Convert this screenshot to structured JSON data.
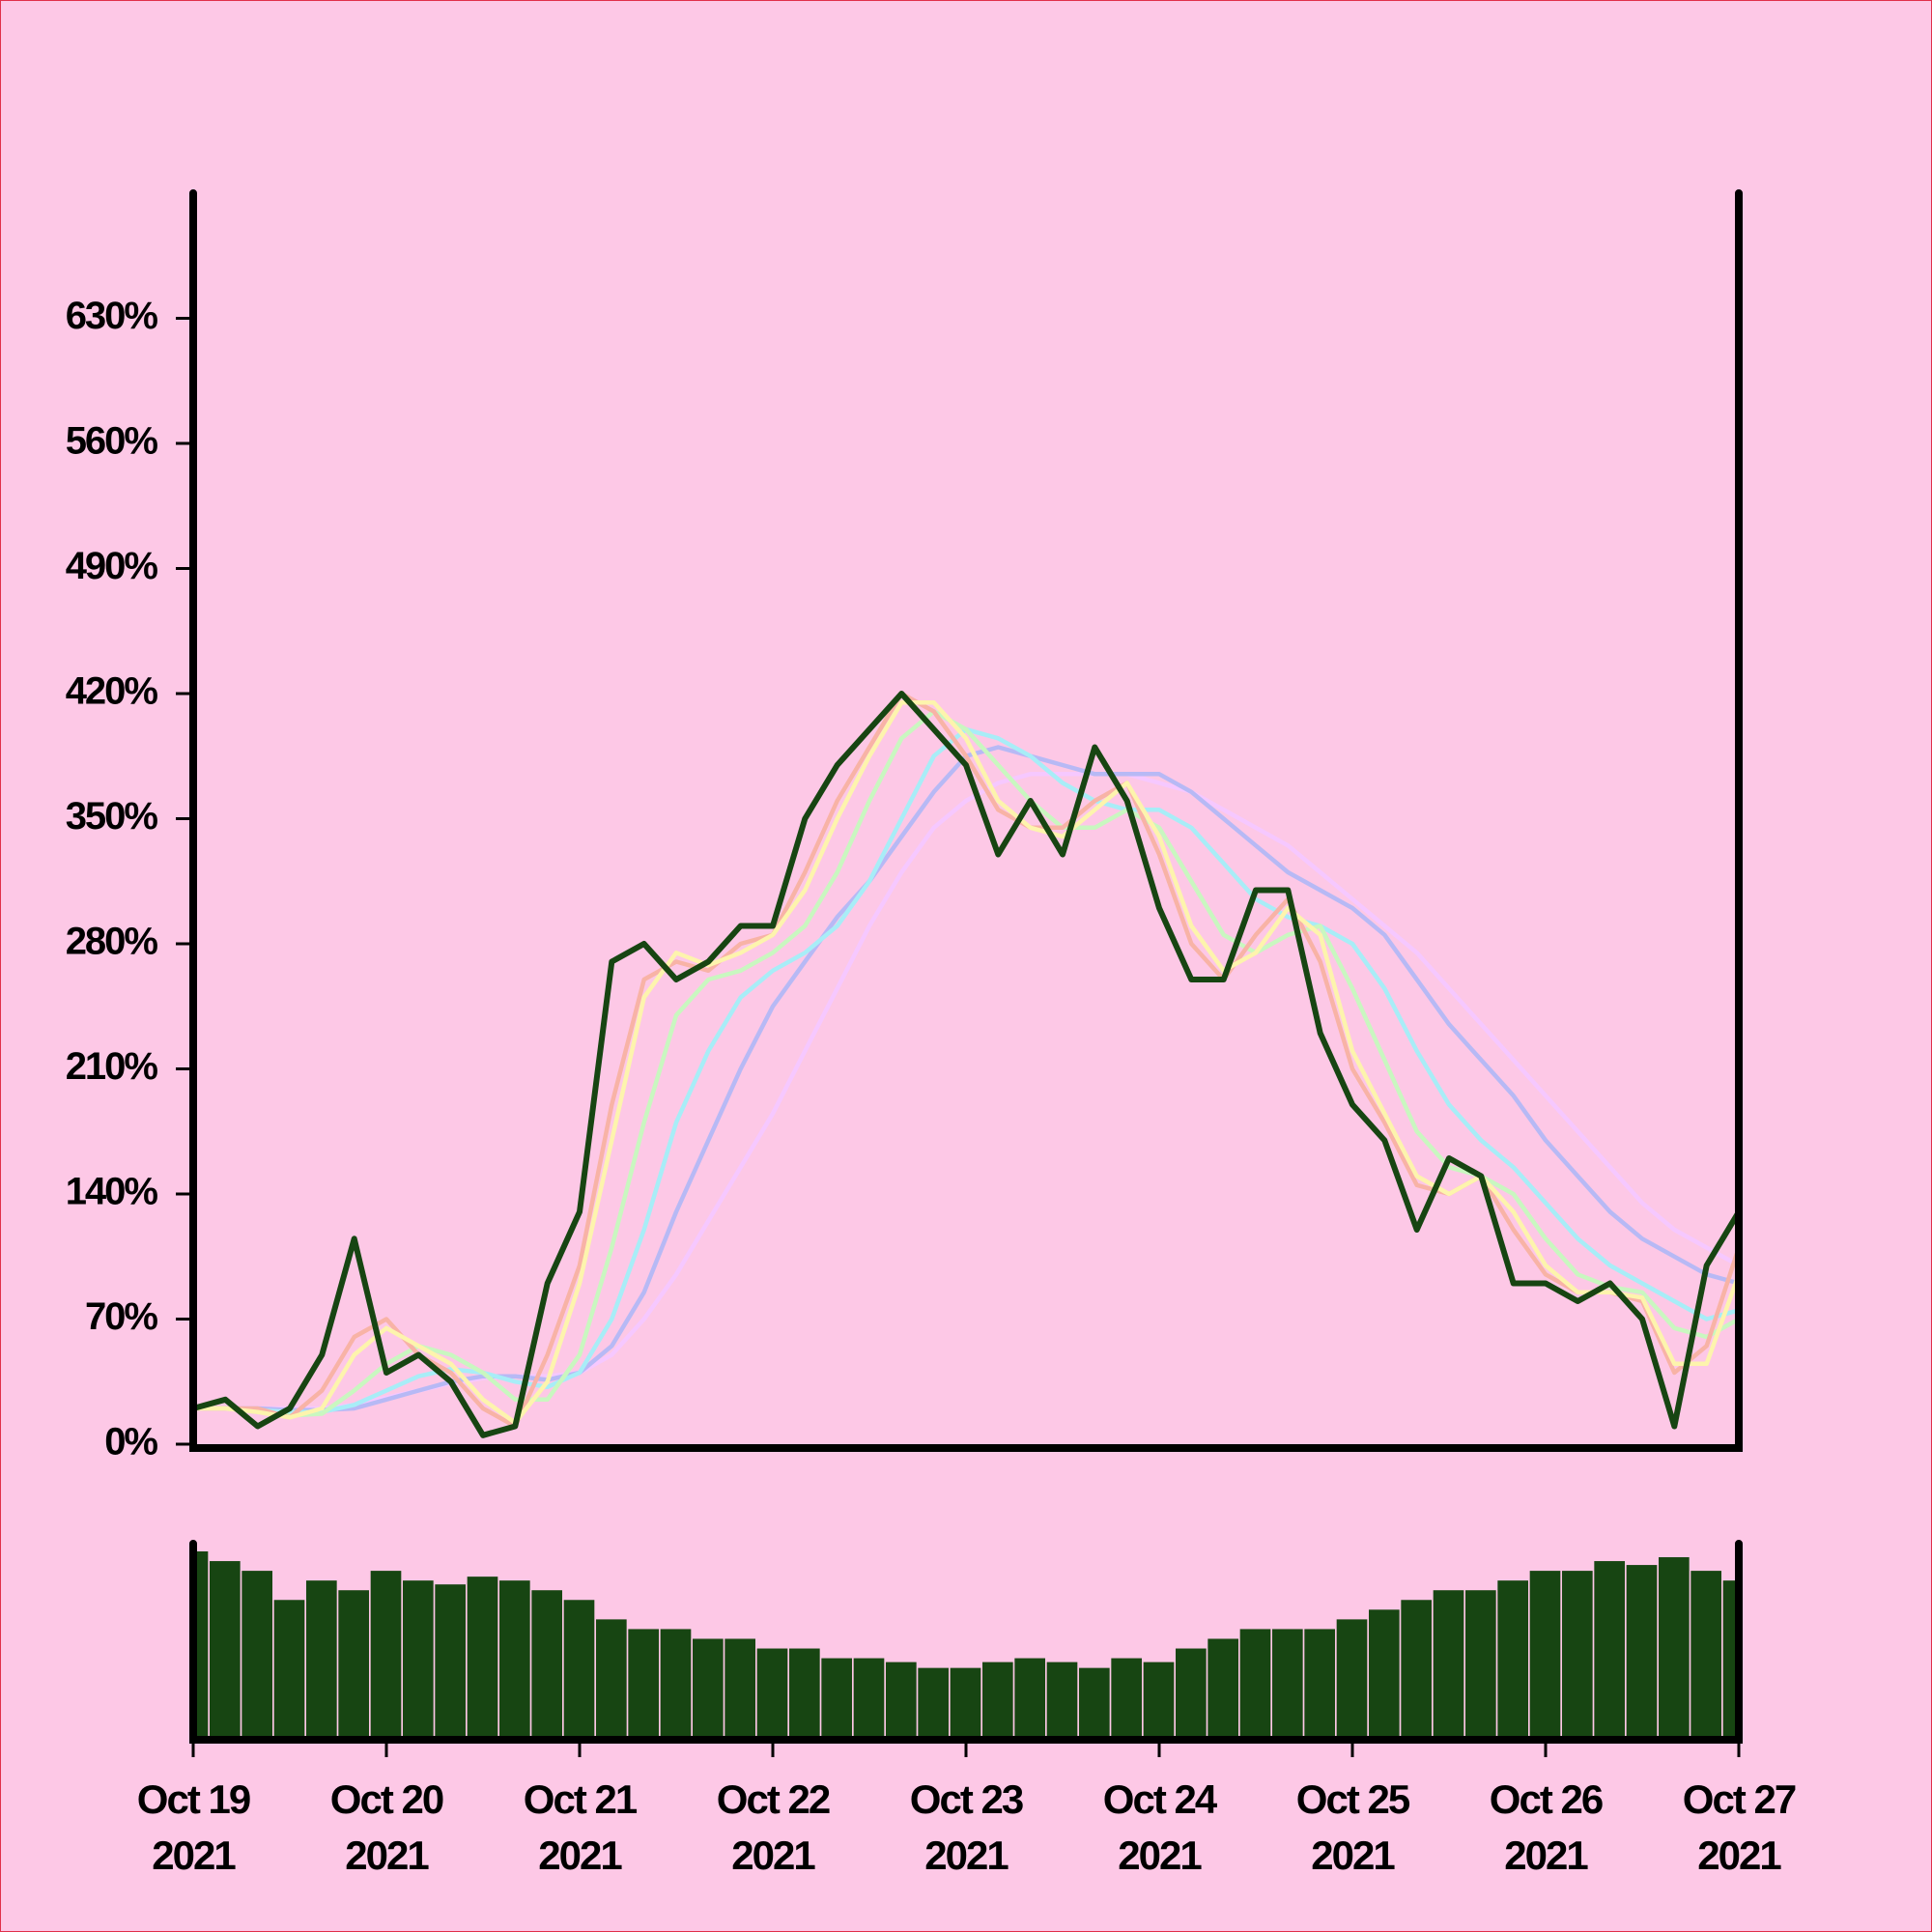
{
  "chart_data": {
    "type": "line",
    "x": [
      "2021-10-19T00:00",
      "2021-10-19T04:00",
      "2021-10-19T08:00",
      "2021-10-19T12:00",
      "2021-10-19T16:00",
      "2021-10-19T20:00",
      "2021-10-20T00:00",
      "2021-10-20T04:00",
      "2021-10-20T08:00",
      "2021-10-20T12:00",
      "2021-10-20T16:00",
      "2021-10-20T20:00",
      "2021-10-21T00:00",
      "2021-10-21T04:00",
      "2021-10-21T08:00",
      "2021-10-21T12:00",
      "2021-10-21T16:00",
      "2021-10-21T20:00",
      "2021-10-22T00:00",
      "2021-10-22T04:00",
      "2021-10-22T08:00",
      "2021-10-22T12:00",
      "2021-10-22T16:00",
      "2021-10-22T20:00",
      "2021-10-23T00:00",
      "2021-10-23T04:00",
      "2021-10-23T08:00",
      "2021-10-23T12:00",
      "2021-10-23T16:00",
      "2021-10-23T20:00",
      "2021-10-24T00:00",
      "2021-10-24T04:00",
      "2021-10-24T08:00",
      "2021-10-24T12:00",
      "2021-10-24T16:00",
      "2021-10-24T20:00",
      "2021-10-25T00:00",
      "2021-10-25T04:00",
      "2021-10-25T08:00",
      "2021-10-25T12:00",
      "2021-10-25T16:00",
      "2021-10-25T20:00",
      "2021-10-26T00:00",
      "2021-10-26T04:00",
      "2021-10-26T08:00",
      "2021-10-26T12:00",
      "2021-10-26T16:00",
      "2021-10-26T20:00",
      "2021-10-27T00:00"
    ],
    "xlim": [
      "2021-10-19T00:00",
      "2021-10-27T00:00"
    ],
    "xticks": [
      {
        "value": "2021-10-19T00:00",
        "label": "Oct 19\n2021"
      },
      {
        "value": "2021-10-20T00:00",
        "label": "Oct 20\n2021"
      },
      {
        "value": "2021-10-21T00:00",
        "label": "Oct 21\n2021"
      },
      {
        "value": "2021-10-22T00:00",
        "label": "Oct 22\n2021"
      },
      {
        "value": "2021-10-23T00:00",
        "label": "Oct 23\n2021"
      },
      {
        "value": "2021-10-24T00:00",
        "label": "Oct 24\n2021"
      },
      {
        "value": "2021-10-25T00:00",
        "label": "Oct 25\n2021"
      },
      {
        "value": "2021-10-26T00:00",
        "label": "Oct 26\n2021"
      },
      {
        "value": "2021-10-27T00:00",
        "label": "Oct 27\n2021"
      }
    ],
    "ylim": [
      0,
      700
    ],
    "yticks": [
      {
        "value": 0,
        "label": "0%"
      },
      {
        "value": 70,
        "label": "70%"
      },
      {
        "value": 140,
        "label": "140%"
      },
      {
        "value": 210,
        "label": "210%"
      },
      {
        "value": 280,
        "label": "280%"
      },
      {
        "value": 350,
        "label": "350%"
      },
      {
        "value": 420,
        "label": "420%"
      },
      {
        "value": 490,
        "label": "490%"
      },
      {
        "value": 560,
        "label": "560%"
      },
      {
        "value": 630,
        "label": "630%"
      }
    ],
    "series": [
      {
        "color": "#f6c8ff",
        "values": [
          20,
          20,
          20,
          20,
          20,
          22,
          26,
          30,
          34,
          37,
          38,
          38,
          40,
          50,
          70,
          95,
          125,
          155,
          185,
          220,
          255,
          290,
          320,
          345,
          360,
          370,
          375,
          375,
          375,
          375,
          370,
          365,
          355,
          345,
          335,
          320,
          305,
          290,
          275,
          255,
          235,
          215,
          195,
          175,
          155,
          135,
          120,
          110,
          100
        ]
      },
      {
        "color": "#b7b9f5",
        "values": [
          20,
          20,
          20,
          19,
          19,
          20,
          25,
          30,
          35,
          38,
          38,
          36,
          40,
          55,
          85,
          130,
          170,
          210,
          245,
          270,
          295,
          315,
          340,
          365,
          385,
          390,
          385,
          380,
          375,
          375,
          375,
          365,
          350,
          335,
          320,
          310,
          300,
          285,
          260,
          235,
          215,
          195,
          170,
          150,
          130,
          115,
          105,
          95,
          90
        ]
      },
      {
        "color": "#a8edf7",
        "values": [
          20,
          20,
          19,
          18,
          18,
          22,
          30,
          38,
          42,
          40,
          35,
          32,
          40,
          70,
          120,
          180,
          220,
          250,
          265,
          275,
          290,
          315,
          350,
          385,
          400,
          395,
          385,
          370,
          360,
          355,
          355,
          345,
          325,
          305,
          295,
          290,
          280,
          255,
          220,
          190,
          170,
          155,
          135,
          115,
          100,
          90,
          80,
          70,
          75
        ]
      },
      {
        "color": "#c9f7c0",
        "values": [
          20,
          20,
          18,
          16,
          17,
          30,
          45,
          55,
          50,
          40,
          25,
          25,
          50,
          110,
          180,
          240,
          260,
          265,
          275,
          290,
          320,
          360,
          395,
          410,
          400,
          380,
          360,
          345,
          345,
          355,
          345,
          315,
          285,
          275,
          285,
          290,
          255,
          215,
          175,
          155,
          150,
          140,
          115,
          95,
          88,
          85,
          65,
          60,
          70
        ]
      },
      {
        "color": "#f8b3a6",
        "values": [
          20,
          20,
          20,
          15,
          30,
          60,
          70,
          50,
          40,
          20,
          10,
          50,
          100,
          190,
          260,
          270,
          265,
          280,
          285,
          320,
          360,
          390,
          420,
          410,
          385,
          355,
          345,
          345,
          360,
          370,
          330,
          280,
          260,
          285,
          305,
          270,
          210,
          180,
          145,
          140,
          150,
          120,
          95,
          85,
          85,
          80,
          40,
          55,
          110
        ]
      },
      {
        "color": "#fdf4ad",
        "values": [
          20,
          20,
          18,
          15,
          20,
          50,
          65,
          55,
          45,
          25,
          12,
          35,
          90,
          170,
          250,
          275,
          268,
          275,
          285,
          310,
          350,
          385,
          415,
          415,
          395,
          360,
          345,
          340,
          355,
          370,
          340,
          290,
          265,
          275,
          300,
          285,
          220,
          185,
          150,
          140,
          150,
          130,
          100,
          85,
          85,
          82,
          45,
          45,
          95
        ]
      },
      {
        "color": "#174512",
        "values": [
          20,
          25,
          10,
          20,
          50,
          115,
          40,
          50,
          35,
          5,
          10,
          90,
          130,
          270,
          280,
          260,
          270,
          290,
          290,
          350,
          380,
          400,
          420,
          400,
          380,
          330,
          360,
          330,
          390,
          360,
          300,
          260,
          260,
          310,
          310,
          230,
          190,
          170,
          120,
          160,
          150,
          90,
          90,
          80,
          90,
          70,
          10,
          100,
          130
        ]
      }
    ],
    "volume": {
      "color": "#174512",
      "values": [
        95,
        90,
        85,
        70,
        80,
        75,
        85,
        80,
        78,
        82,
        80,
        75,
        70,
        60,
        55,
        55,
        50,
        50,
        45,
        45,
        40,
        40,
        38,
        35,
        35,
        38,
        40,
        38,
        35,
        40,
        38,
        45,
        50,
        55,
        55,
        55,
        60,
        65,
        70,
        75,
        75,
        80,
        85,
        85,
        90,
        88,
        92,
        85,
        80
      ]
    }
  }
}
